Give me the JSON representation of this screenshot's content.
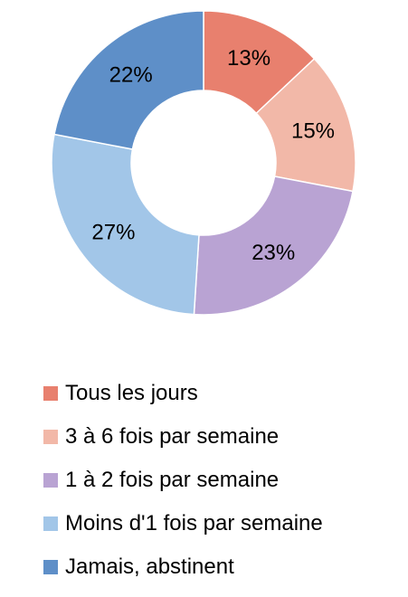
{
  "chart_data": {
    "type": "pie",
    "variant": "donut",
    "title": "",
    "legend_position": "bottom",
    "categories": [
      "Tous les jours",
      "3 à 6 fois par semaine",
      "1 à 2 fois par semaine",
      "Moins d'1 fois par semaine",
      "Jamais, abstinent"
    ],
    "values": [
      13,
      15,
      23,
      27,
      22
    ],
    "labels": [
      "13%",
      "15%",
      "23%",
      "27%",
      "22%"
    ],
    "colors": [
      "#E8806E",
      "#F2B8A8",
      "#B9A3D3",
      "#A2C6E8",
      "#5E8FC8"
    ]
  }
}
